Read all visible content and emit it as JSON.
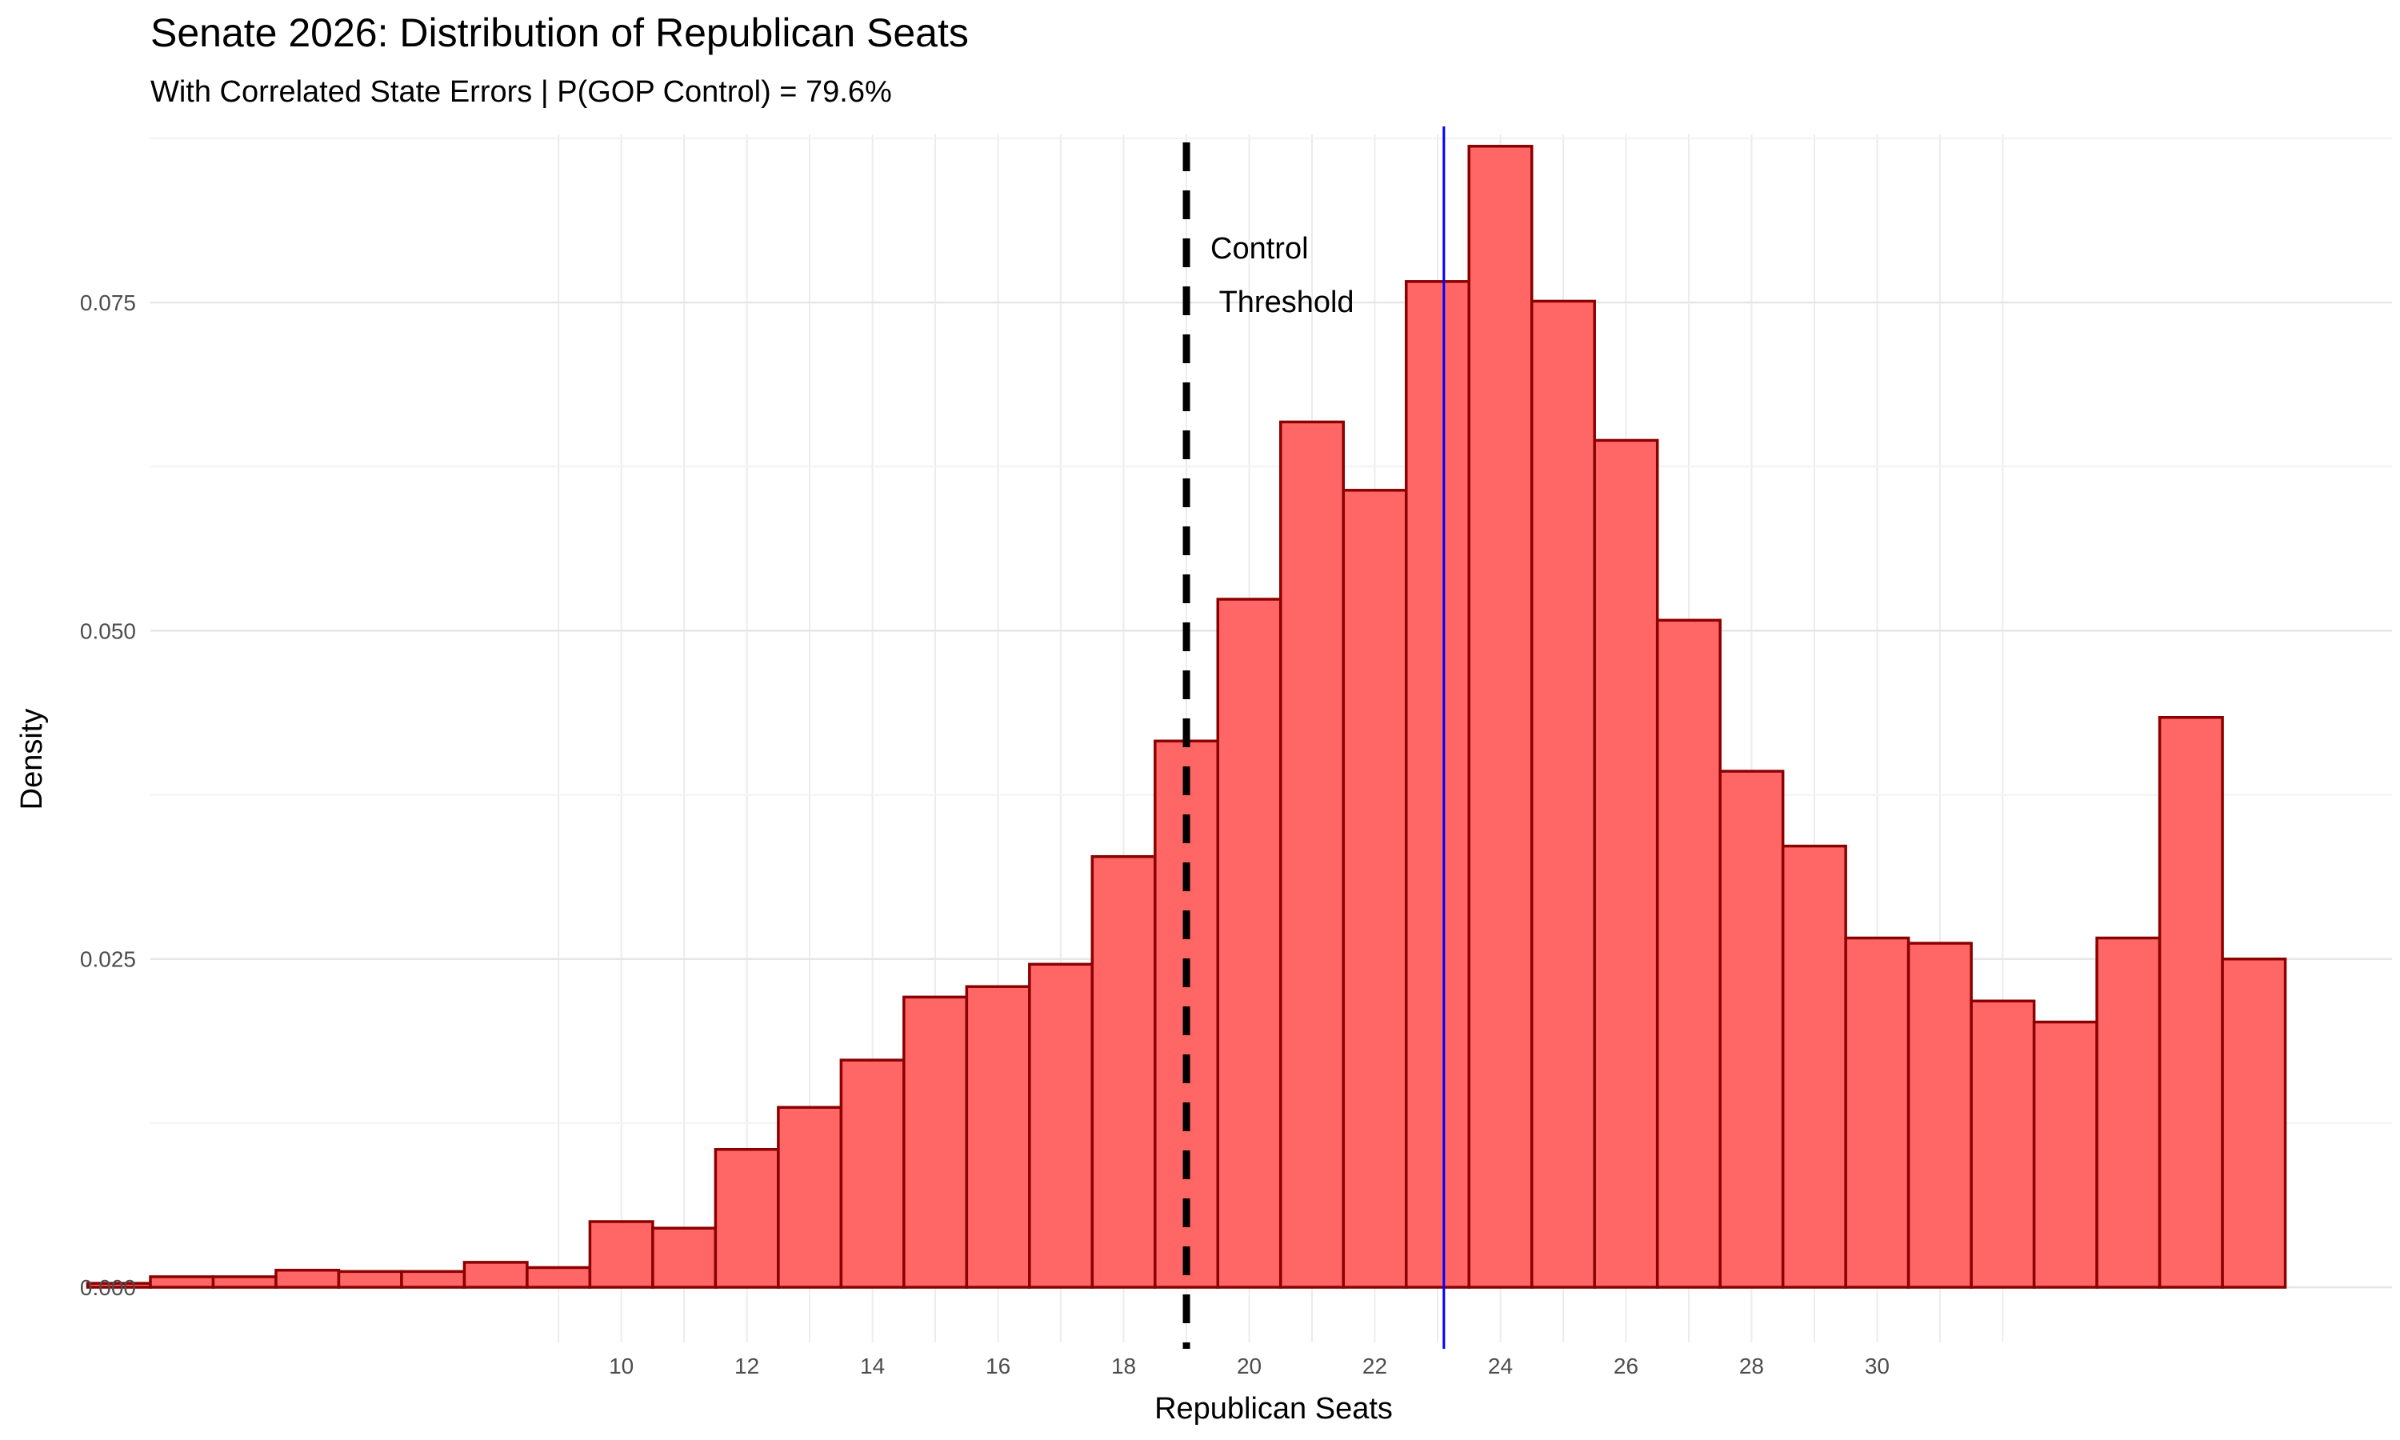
{
  "chart_data": {
    "type": "bar",
    "title": "Senate 2026: Distribution of Republican Seats",
    "subtitle": "With Correlated State Errors | P(GOP Control) = 79.6%",
    "xlabel": "Republican Seats",
    "ylabel": "Density",
    "xlim": [
      2.5,
      38.2
    ],
    "ylim": [
      -0.0042,
      0.0878
    ],
    "x_ticks": [
      10,
      12,
      14,
      16,
      18,
      20,
      22,
      24,
      26,
      28,
      30
    ],
    "x_tick_labels": [
      "10",
      "12",
      "14",
      "16",
      "18",
      "20",
      "22",
      "24",
      "26",
      "28",
      "30"
    ],
    "x_minor_gridlines": [
      9,
      10,
      11,
      12,
      13,
      14,
      15,
      16,
      17,
      18,
      19,
      20,
      21,
      22,
      23,
      24,
      25,
      26,
      27,
      28,
      29,
      30,
      31,
      32
    ],
    "y_ticks": [
      0,
      0.025,
      0.05,
      0.075
    ],
    "y_tick_labels": [
      "0.000",
      "0.025",
      "0.050",
      "0.075"
    ],
    "bins": {
      "x": [
        2,
        3,
        4,
        5,
        6,
        7,
        8,
        9,
        10,
        11,
        12,
        13,
        14,
        15,
        16,
        17,
        18,
        19,
        20,
        21,
        22,
        23,
        24,
        25,
        26,
        27,
        28,
        29,
        30,
        31,
        32,
        33,
        34,
        35,
        36
      ],
      "density": [
        0.0003,
        0.0008,
        0.0008,
        0.0013,
        0.0012,
        0.0012,
        0.0019,
        0.0015,
        0.005,
        0.0045,
        0.0105,
        0.0137,
        0.0173,
        0.0221,
        0.0229,
        0.0246,
        0.0328,
        0.0416,
        0.0524,
        0.0659,
        0.0607,
        0.0766,
        0.0869,
        0.0751,
        0.0645,
        0.0508,
        0.0393,
        0.0336,
        0.0266,
        0.0262,
        0.0218,
        0.0202,
        0.0266,
        0.0434,
        0.025
      ],
      "fill": "#FF6666",
      "stroke": "#8B0000"
    },
    "threshold_line": {
      "x": 19,
      "label": "Control\n Threshold",
      "color": "#000000",
      "style": "dashed"
    },
    "mean_line": {
      "x": 23.1,
      "color": "#0000FF"
    },
    "grid": true,
    "legend": "none"
  }
}
